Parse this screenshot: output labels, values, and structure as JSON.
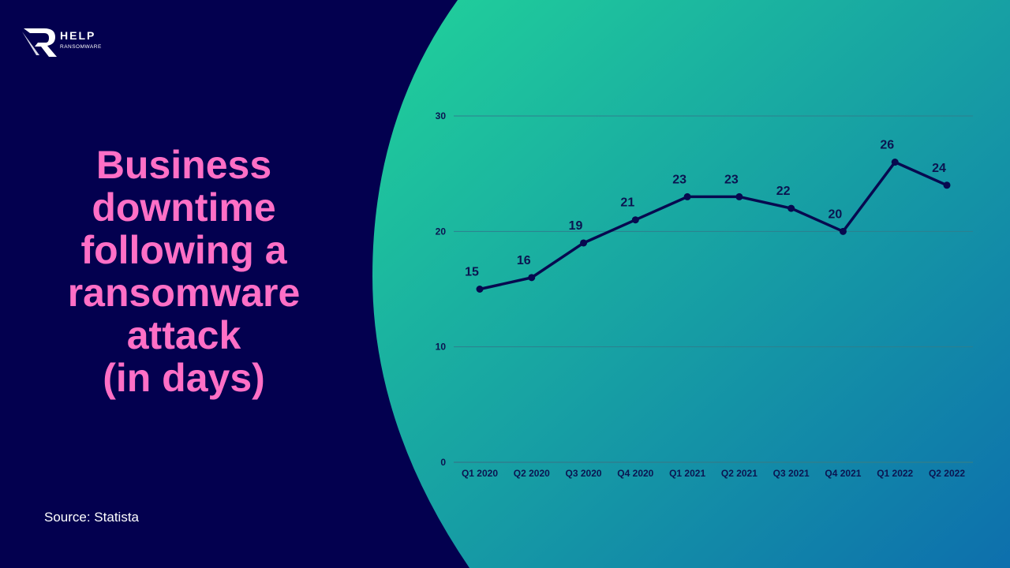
{
  "brand": {
    "name": "HELP",
    "tagline": "RANSOMWARE"
  },
  "title_lines": [
    "Business",
    "downtime",
    "following a",
    "ransomware",
    "attack",
    "(in days)"
  ],
  "source": "Source: Statista",
  "colors": {
    "background": "#03004f",
    "title": "#ff6fc6",
    "gradient_start": "#21d29a",
    "gradient_end": "#0d6fad",
    "line": "#07094f",
    "grid": "#2e7f8e"
  },
  "chart_data": {
    "type": "line",
    "title": "",
    "xlabel": "",
    "ylabel": "",
    "categories": [
      "Q1 2020",
      "Q2 2020",
      "Q3 2020",
      "Q4 2020",
      "Q1 2021",
      "Q2 2021",
      "Q3 2021",
      "Q4 2021",
      "Q1 2022",
      "Q2 2022"
    ],
    "series": [
      {
        "values": [
          15,
          16,
          19,
          21,
          23,
          23,
          22,
          20,
          26,
          24
        ]
      }
    ],
    "ylim": [
      0,
      30
    ],
    "yticks": [
      0,
      10,
      20,
      30
    ],
    "grid": true,
    "data_labels": true
  }
}
